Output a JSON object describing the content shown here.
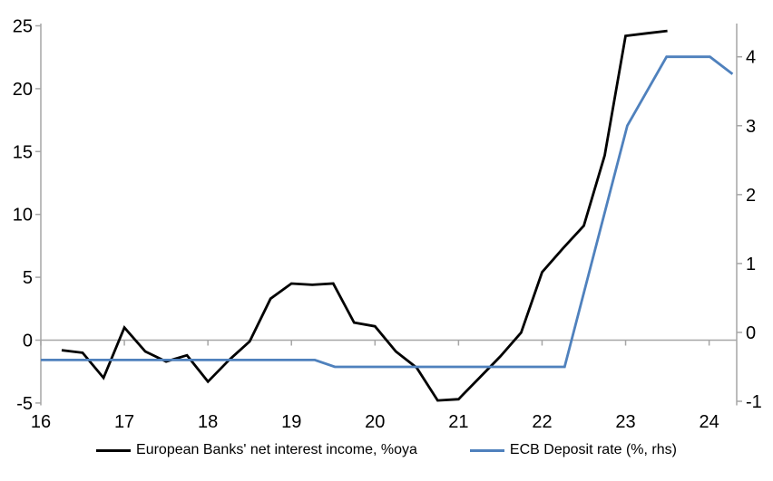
{
  "chart_data": {
    "type": "line",
    "title": "",
    "xlabel": "",
    "ylabel_left": "",
    "ylabel_right": "",
    "x_tick_labels": [
      "16",
      "17",
      "18",
      "19",
      "20",
      "21",
      "22",
      "23",
      "24"
    ],
    "x_ticks": [
      16,
      17,
      18,
      19,
      20,
      21,
      22,
      23,
      24
    ],
    "x_range": [
      16,
      24.33
    ],
    "left_axis": {
      "tick_labels": [
        "25",
        "20",
        "15",
        "10",
        "5",
        "0",
        "-5"
      ],
      "ticks": [
        25,
        20,
        15,
        10,
        5,
        0,
        -5
      ],
      "range": [
        -5,
        25
      ]
    },
    "right_axis": {
      "tick_labels": [
        "4",
        "3",
        "2",
        "1",
        "0",
        "-1"
      ],
      "ticks": [
        4,
        3,
        2,
        1,
        0,
        -1
      ],
      "range": [
        -1,
        4.45
      ]
    },
    "grid": "zero-line-only",
    "legend_position": "bottom-center",
    "series": [
      {
        "name": "European Banks' net interest income, %oya",
        "axis": "left",
        "color": "#000000",
        "x": [
          16.25,
          16.5,
          16.75,
          17.0,
          17.25,
          17.5,
          17.75,
          18.0,
          18.25,
          18.5,
          18.75,
          19.0,
          19.25,
          19.5,
          19.75,
          20.0,
          20.25,
          20.5,
          20.75,
          21.0,
          21.25,
          21.5,
          21.75,
          22.0,
          22.25,
          22.5,
          22.75,
          23.0,
          23.25,
          23.5
        ],
        "values": [
          -0.8,
          -1.0,
          -3.0,
          1.0,
          -0.9,
          -1.7,
          -1.2,
          -3.3,
          -1.6,
          -0.1,
          3.3,
          4.5,
          4.4,
          4.5,
          1.4,
          1.1,
          -0.9,
          -2.2,
          -4.8,
          -4.7,
          -3.0,
          -1.3,
          0.6,
          5.4,
          7.3,
          9.1,
          14.7,
          24.2,
          24.4,
          24.6
        ]
      },
      {
        "name": "ECB Deposit rate (%, rhs)",
        "axis": "right",
        "color": "#4f81bd",
        "x": [
          16.0,
          19.28,
          19.52,
          22.27,
          23.02,
          23.49,
          24.01,
          24.28
        ],
        "values": [
          -0.4,
          -0.4,
          -0.5,
          -0.5,
          3.0,
          4.0,
          4.0,
          3.75
        ]
      }
    ]
  },
  "legend": {
    "series1": "European Banks' net interest income, %oya",
    "series2": "ECB Deposit rate (%, rhs)"
  },
  "colors": {
    "nii_line": "#000000",
    "ecb_line": "#4f81bd",
    "axis": "#a6a6a6",
    "text": "#000000"
  }
}
